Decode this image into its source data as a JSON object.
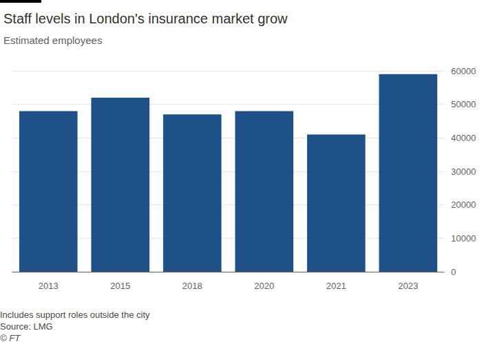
{
  "chart_data": {
    "type": "bar",
    "title": "Staff levels in London's insurance market grow",
    "subtitle": "Estimated employees",
    "annotations": [
      "Includes support roles outside the city",
      "Source: LMG",
      "© FT"
    ],
    "categories": [
      "2013",
      "2015",
      "2018",
      "2020",
      "2021",
      "2023"
    ],
    "values": [
      48000,
      52000,
      47000,
      48000,
      41000,
      59000
    ],
    "color": "#1f5189",
    "ylim": [
      0,
      60000
    ],
    "yticks": [
      0,
      10000,
      20000,
      30000,
      40000,
      50000,
      60000
    ],
    "grid": true
  }
}
